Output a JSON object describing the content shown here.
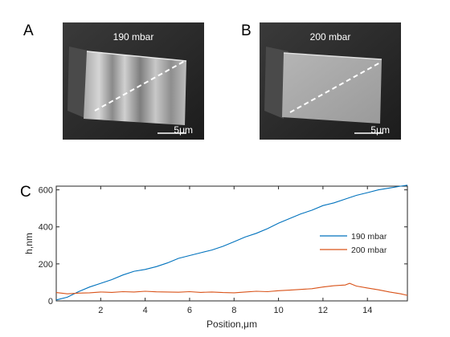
{
  "figure": {
    "panels": [
      {
        "letter": "A",
        "caption": "190 mbar",
        "scalebar": "5μm"
      },
      {
        "letter": "B",
        "caption": "200 mbar",
        "scalebar": "5μm"
      },
      {
        "letter": "C"
      }
    ]
  },
  "colors": {
    "series_190": "#0072BD",
    "series_200": "#D95319",
    "axis": "#262626"
  },
  "chart_data": {
    "type": "line",
    "xlabel": "Position,μm",
    "ylabel": "h,nm",
    "xlim": [
      0,
      15.8
    ],
    "ylim": [
      0,
      620
    ],
    "xticks": [
      2,
      4,
      6,
      8,
      10,
      12,
      14
    ],
    "yticks": [
      0,
      200,
      400,
      600
    ],
    "grid": false,
    "legend_position": "right",
    "series": [
      {
        "name": "190 mbar",
        "x": [
          0,
          0.5,
          1,
          1.5,
          2,
          2.5,
          3,
          3.5,
          4,
          4.5,
          5,
          5.5,
          6,
          6.5,
          7,
          7.5,
          8,
          8.5,
          9,
          9.5,
          10,
          10.5,
          11,
          11.5,
          12,
          12.5,
          13,
          13.5,
          14,
          14.5,
          15,
          15.5,
          15.8
        ],
        "y": [
          5,
          20,
          50,
          75,
          95,
          115,
          140,
          160,
          170,
          185,
          205,
          230,
          245,
          260,
          275,
          295,
          320,
          345,
          365,
          390,
          420,
          445,
          470,
          490,
          515,
          530,
          550,
          570,
          585,
          600,
          610,
          620,
          625
        ]
      },
      {
        "name": "200 mbar",
        "x": [
          0,
          0.5,
          1,
          1.5,
          2,
          2.5,
          3,
          3.5,
          4,
          4.5,
          5,
          5.5,
          6,
          6.5,
          7,
          7.5,
          8,
          8.5,
          9,
          9.5,
          10,
          10.5,
          11,
          11.5,
          12,
          12.5,
          13,
          13.2,
          13.5,
          14,
          14.5,
          15,
          15.5,
          15.8
        ],
        "y": [
          45,
          38,
          42,
          44,
          48,
          46,
          50,
          48,
          52,
          49,
          48,
          47,
          50,
          46,
          48,
          45,
          44,
          48,
          52,
          50,
          55,
          58,
          62,
          66,
          75,
          82,
          86,
          95,
          80,
          70,
          60,
          48,
          38,
          30
        ]
      }
    ]
  }
}
